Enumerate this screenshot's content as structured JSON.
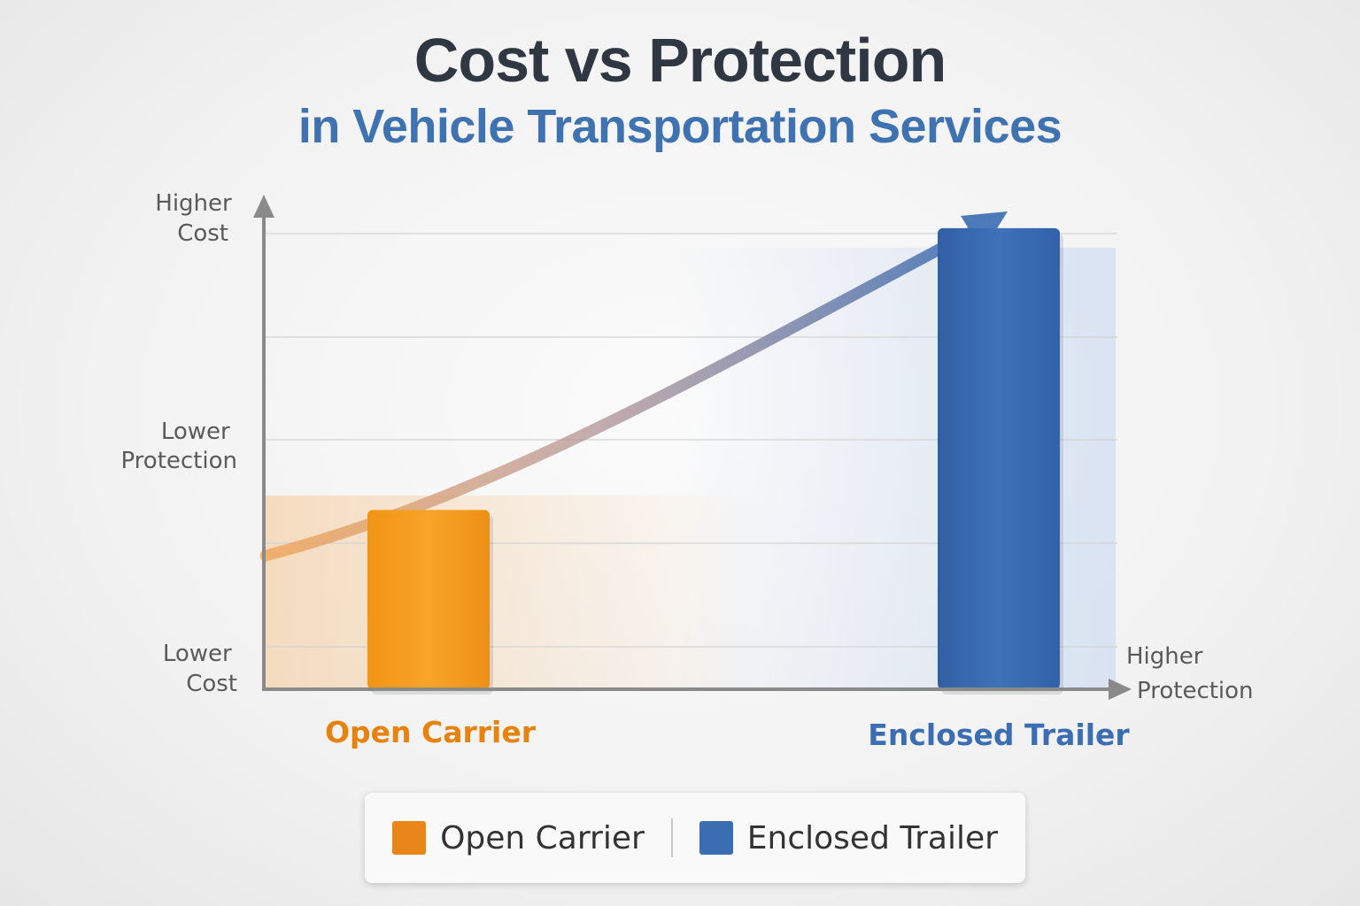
{
  "chart_data": {
    "type": "bar",
    "title": "Cost vs Protection",
    "subtitle": "in Vehicle Transportation Services",
    "categories": [
      "Open Carrier",
      "Enclosed Trailer"
    ],
    "values": [
      0.35,
      0.9
    ],
    "colors": [
      "#f39a1b",
      "#3b6db3"
    ],
    "y_axis_labels": {
      "top": [
        "Higher",
        "Cost"
      ],
      "middle": [
        "Lower",
        "Protection"
      ],
      "bottom": [
        "Lower",
        "Cost"
      ]
    },
    "x_axis_label": [
      "Higher",
      "Protection"
    ],
    "ylim": [
      0,
      1
    ],
    "grid": true,
    "trend_arrow": {
      "from": "Open Carrier",
      "to": "Enclosed Trailer",
      "direction": "increasing"
    },
    "legend": {
      "placement": "bottom",
      "items": [
        {
          "label": "Open Carrier",
          "color": "#e8861a"
        },
        {
          "label": "Enclosed Trailer",
          "color": "#3b6db3"
        }
      ]
    }
  }
}
